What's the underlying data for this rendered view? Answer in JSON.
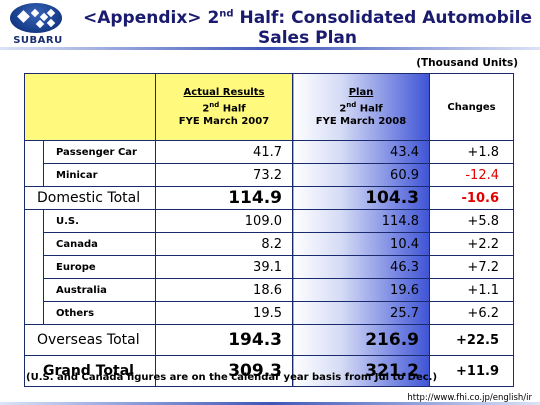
{
  "header": {
    "logo_text": "SUBARU",
    "title_prefix": "<Appendix> 2",
    "title_sup": "nd",
    "title_suffix": " Half: Consolidated Automobile Sales Plan"
  },
  "units": "(Thousand Units)",
  "columns": {
    "actual": {
      "line1": "Actual Results",
      "line2_prefix": "2",
      "line2_sup": "nd",
      "line2_suffix": " Half",
      "line3": "FYE March 2007"
    },
    "plan": {
      "line1": "Plan",
      "line2_prefix": "2",
      "line2_sup": "nd",
      "line2_suffix": " Half",
      "line3": "FYE March 2008"
    },
    "changes": "Changes"
  },
  "domestic_rows": [
    {
      "label": "Passenger Car",
      "actual": "41.7",
      "plan": "43.4",
      "change": "+1.8"
    },
    {
      "label": "Minicar",
      "actual": "73.2",
      "plan": "60.9",
      "change": "-12.4"
    }
  ],
  "domestic_total": {
    "label": "Domestic Total",
    "actual": "114.9",
    "plan": "104.3",
    "change": "-10.6"
  },
  "overseas_rows": [
    {
      "label": "U.S.",
      "actual": "109.0",
      "plan": "114.8",
      "change": "+5.8"
    },
    {
      "label": "Canada",
      "actual": "8.2",
      "plan": "10.4",
      "change": "+2.2"
    },
    {
      "label": "Europe",
      "actual": "39.1",
      "plan": "46.3",
      "change": "+7.2"
    },
    {
      "label": "Australia",
      "actual": "18.6",
      "plan": "19.6",
      "change": "+1.1"
    },
    {
      "label": "Others",
      "actual": "19.5",
      "plan": "25.7",
      "change": "+6.2"
    }
  ],
  "overseas_total": {
    "label": "Overseas Total",
    "actual": "194.3",
    "plan": "216.9",
    "change": "+22.5"
  },
  "grand_total": {
    "label": "Grand Total",
    "actual": "309.3",
    "plan": "321.2",
    "change": "+11.9"
  },
  "note": "(U.S. and Canada figures are on the calendar year basis from Jul to Dec.)",
  "url": "http://www.fhi.co.jp/english/ir",
  "colors": {
    "negative": "#e10000",
    "header_yellow": "#fff97d",
    "plan_blue": "#3f54d6",
    "border": "#1a2a6e"
  }
}
